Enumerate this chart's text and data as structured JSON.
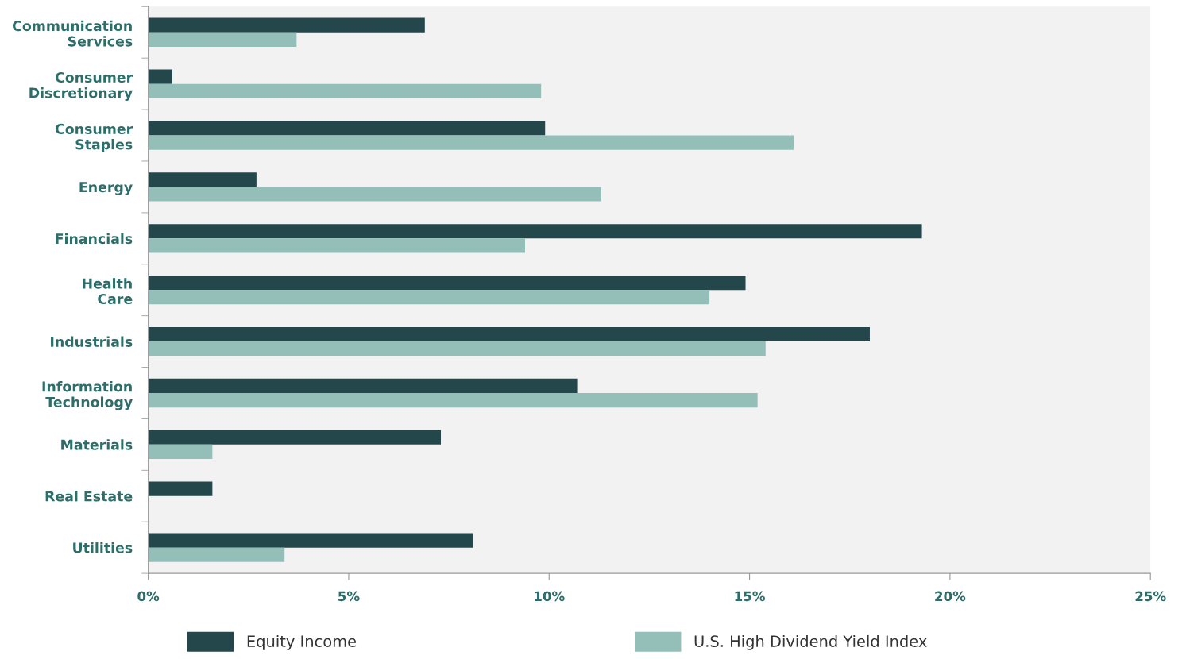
{
  "chart_data": {
    "type": "bar",
    "orientation": "horizontal",
    "categories": [
      "Communication\nServices",
      "Consumer\nDiscretionary",
      "Consumer\nStaples",
      "Energy",
      "Financials",
      "Health\nCare",
      "Industrials",
      "Information\nTechnology",
      "Materials",
      "Real Estate",
      "Utilities"
    ],
    "series": [
      {
        "name": "Equity Income",
        "color": "#24474b",
        "values": [
          6.9,
          0.6,
          9.9,
          2.7,
          19.3,
          14.9,
          18.0,
          10.7,
          7.3,
          1.6,
          8.1
        ]
      },
      {
        "name": "U.S. High Dividend Yield Index",
        "color": "#93bfb8",
        "values": [
          3.7,
          9.8,
          16.1,
          11.3,
          9.4,
          14.0,
          15.4,
          15.2,
          1.6,
          null,
          3.4
        ]
      }
    ],
    "xlim": [
      0,
      25
    ],
    "xticks": [
      {
        "value": 0,
        "label": "0%"
      },
      {
        "value": 5,
        "label": "5%"
      },
      {
        "value": 10,
        "label": "10%"
      },
      {
        "value": 15,
        "label": "15%"
      },
      {
        "value": 20,
        "label": "20%"
      },
      {
        "value": 25,
        "label": "25%"
      }
    ],
    "grid": false,
    "legend": "bottom"
  }
}
